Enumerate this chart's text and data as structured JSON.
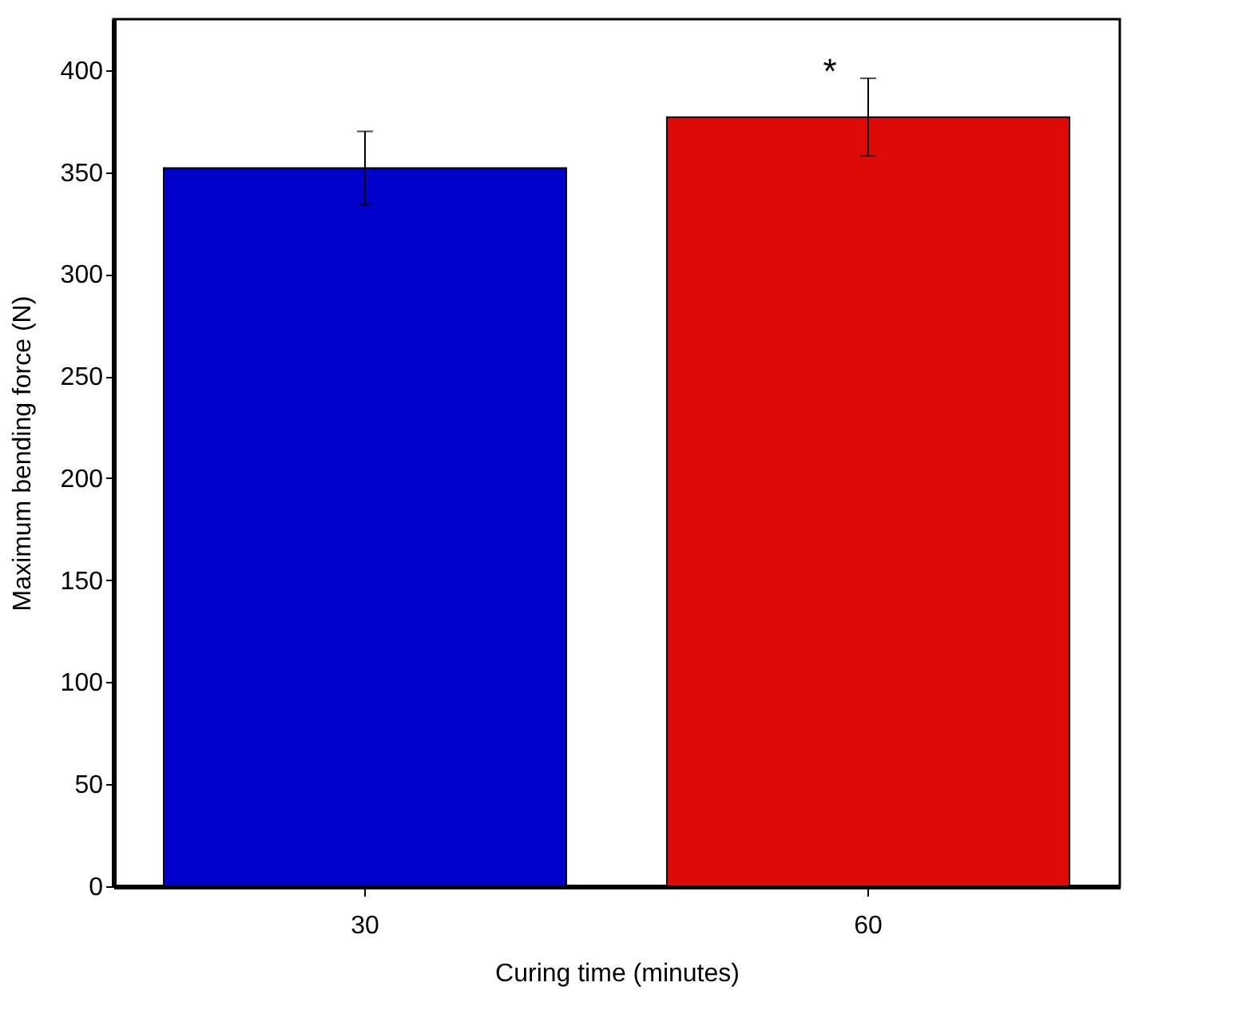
{
  "chart_data": {
    "type": "bar",
    "xlabel": "Curing time (minutes)",
    "ylabel": "Maximum bending force (N)",
    "categories": [
      "30",
      "60"
    ],
    "values": [
      352,
      377
    ],
    "colors": [
      "#0000cc",
      "#dd0a05"
    ],
    "errors": [
      18,
      19
    ],
    "ylim": [
      0,
      425
    ],
    "yticks": [
      0,
      50,
      100,
      150,
      200,
      250,
      300,
      350,
      400
    ],
    "annotations": [
      "*"
    ]
  }
}
